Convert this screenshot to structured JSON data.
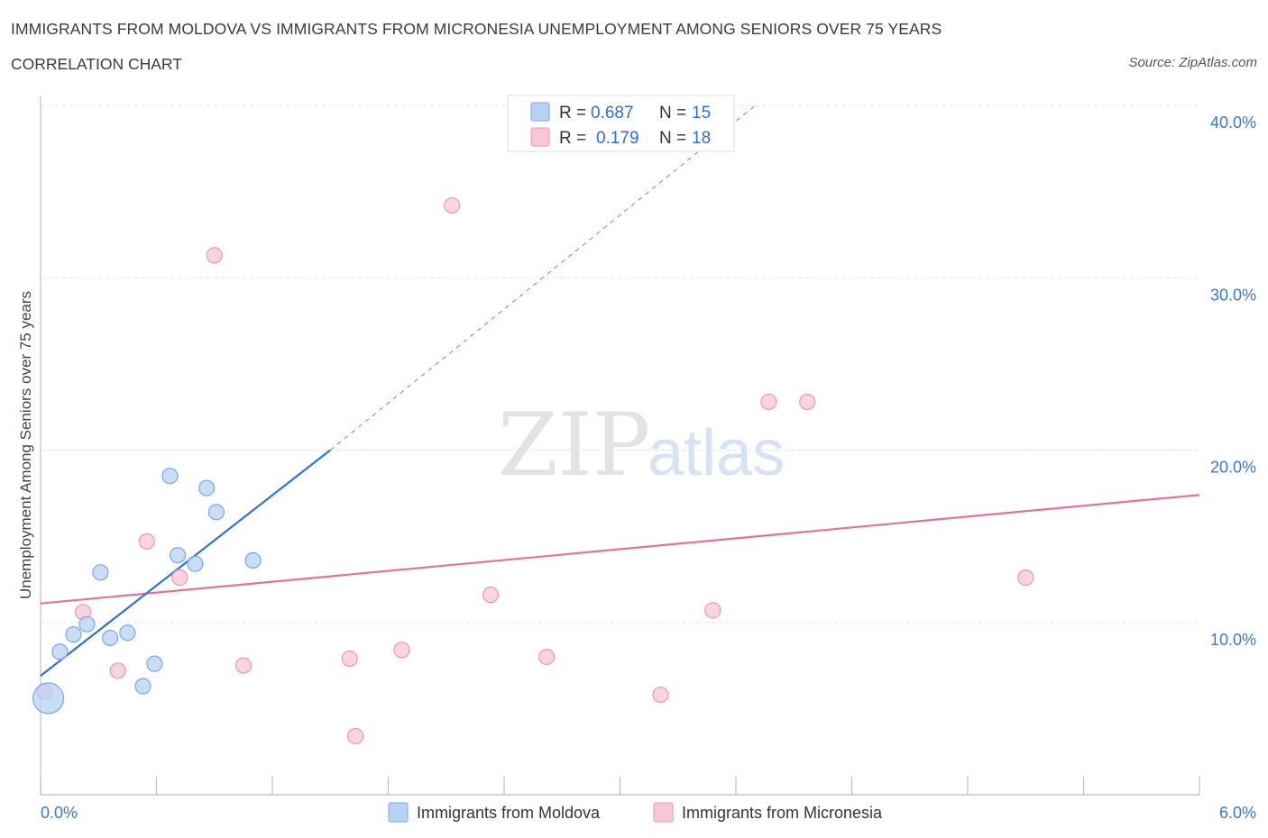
{
  "header": {
    "title": "IMMIGRANTS FROM MOLDOVA VS IMMIGRANTS FROM MICRONESIA UNEMPLOYMENT AMONG SENIORS OVER 75 YEARS",
    "subtitle": "CORRELATION CHART",
    "source": "Source: ZipAtlas.com"
  },
  "watermark": {
    "zip": "ZIP",
    "atlas": "atlas"
  },
  "legend": {
    "series1": {
      "r_label": "R = ",
      "r_value": "0.687",
      "n_label": "N = ",
      "n_value": "15"
    },
    "series2": {
      "r_label": "R = ",
      "r_value": "0.179",
      "n_label": "N = ",
      "n_value": "18"
    }
  },
  "chart_data": {
    "type": "scatter",
    "title": "IMMIGRANTS FROM MOLDOVA VS IMMIGRANTS FROM MICRONESIA UNEMPLOYMENT AMONG SENIORS OVER 75 YEARS",
    "xlabel": "",
    "ylabel": "Unemployment Among Seniors over 75 years",
    "xlim": [
      0,
      6
    ],
    "ylim": [
      0,
      40
    ],
    "x_tick_labels": [
      "0.0%",
      "6.0%"
    ],
    "y_ticks": [
      10,
      20,
      30,
      40
    ],
    "y_tick_labels": [
      "10.0%",
      "20.0%",
      "30.0%",
      "40.0%"
    ],
    "grid": true,
    "legend_position": "bottom",
    "colors": {
      "moldova_fill": "#b7d2f5",
      "moldova_stroke": "#7aa8e6",
      "moldova_line": "#2f72d2",
      "micronesia_fill": "#f8c7d6",
      "micronesia_stroke": "#ee97b3",
      "micronesia_line": "#e0739a"
    },
    "series": [
      {
        "name": "Immigrants from Moldova",
        "r": 0.687,
        "n": 15,
        "points": [
          {
            "x": 0.04,
            "y": 5.6,
            "big": true
          },
          {
            "x": 0.1,
            "y": 8.3
          },
          {
            "x": 0.17,
            "y": 9.3
          },
          {
            "x": 0.24,
            "y": 9.9
          },
          {
            "x": 0.31,
            "y": 12.9
          },
          {
            "x": 0.36,
            "y": 9.1
          },
          {
            "x": 0.45,
            "y": 9.4
          },
          {
            "x": 0.53,
            "y": 6.3
          },
          {
            "x": 0.59,
            "y": 7.6
          },
          {
            "x": 0.67,
            "y": 18.5
          },
          {
            "x": 0.71,
            "y": 13.9
          },
          {
            "x": 0.8,
            "y": 13.4
          },
          {
            "x": 0.86,
            "y": 17.8
          },
          {
            "x": 0.91,
            "y": 16.4
          },
          {
            "x": 1.1,
            "y": 13.6
          }
        ],
        "trend": {
          "x0": 0.0,
          "y0": 6.9,
          "x1": 1.5,
          "y1": 20.0,
          "dash_x1": 3.7,
          "dash_y1": 40.0
        }
      },
      {
        "name": "Immigrants from Micronesia",
        "r": 0.179,
        "n": 18,
        "points": [
          {
            "x": 0.02,
            "y": 6.0
          },
          {
            "x": 0.22,
            "y": 10.6
          },
          {
            "x": 0.4,
            "y": 7.2
          },
          {
            "x": 0.55,
            "y": 14.7
          },
          {
            "x": 0.72,
            "y": 12.6
          },
          {
            "x": 0.9,
            "y": 31.3
          },
          {
            "x": 1.05,
            "y": 7.5
          },
          {
            "x": 1.6,
            "y": 7.9
          },
          {
            "x": 1.63,
            "y": 3.4
          },
          {
            "x": 1.87,
            "y": 8.4
          },
          {
            "x": 2.13,
            "y": 34.2
          },
          {
            "x": 2.33,
            "y": 11.6
          },
          {
            "x": 2.62,
            "y": 8.0
          },
          {
            "x": 3.21,
            "y": 5.8
          },
          {
            "x": 3.48,
            "y": 10.7
          },
          {
            "x": 3.77,
            "y": 22.8
          },
          {
            "x": 3.97,
            "y": 22.8
          },
          {
            "x": 5.1,
            "y": 12.6
          }
        ],
        "trend": {
          "x0": 0.0,
          "y0": 11.1,
          "x1": 6.0,
          "y1": 17.4
        }
      }
    ]
  }
}
